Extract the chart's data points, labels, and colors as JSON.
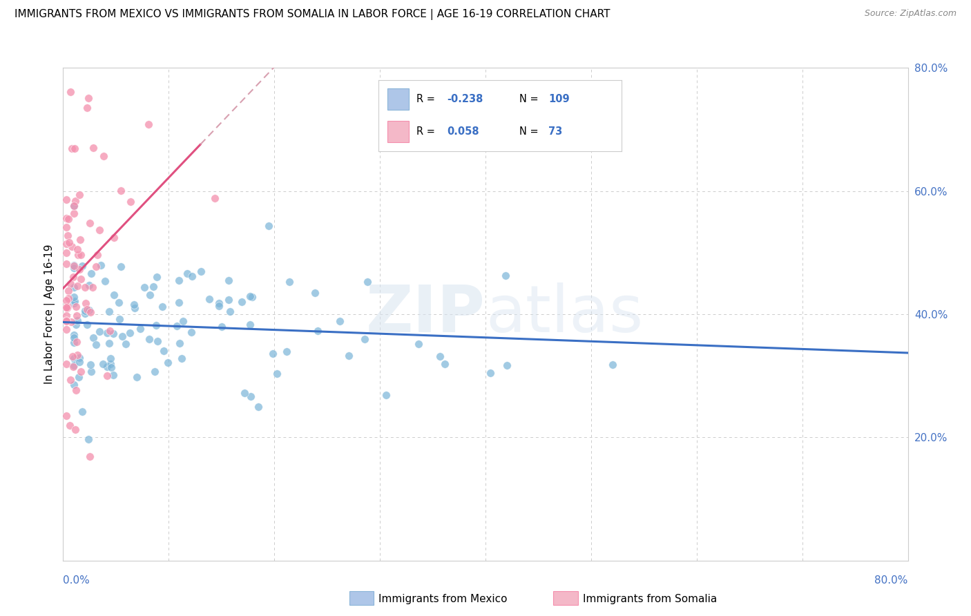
{
  "title": "IMMIGRANTS FROM MEXICO VS IMMIGRANTS FROM SOMALIA IN LABOR FORCE | AGE 16-19 CORRELATION CHART",
  "source": "Source: ZipAtlas.com",
  "ylabel": "In Labor Force | Age 16-19",
  "legend_mexico": {
    "R": "-0.238",
    "N": "109",
    "color": "#aec6e8"
  },
  "legend_somalia": {
    "R": "0.058",
    "N": "73",
    "color": "#f4b8c8"
  },
  "mexico_color": "#7ab4d8",
  "somalia_color": "#f48fad",
  "trend_mexico_color": "#3a6fc4",
  "trend_somalia_color": "#e05080",
  "trend_dashed_color": "#d8a0b0",
  "background_color": "#ffffff",
  "watermark_1": "ZIP",
  "watermark_2": "atlas",
  "xlim": [
    0.0,
    0.8
  ],
  "ylim": [
    0.0,
    0.8
  ],
  "grid_color": "#cccccc",
  "right_tick_color": "#4472c4",
  "bottom_label_color": "#4472c4"
}
